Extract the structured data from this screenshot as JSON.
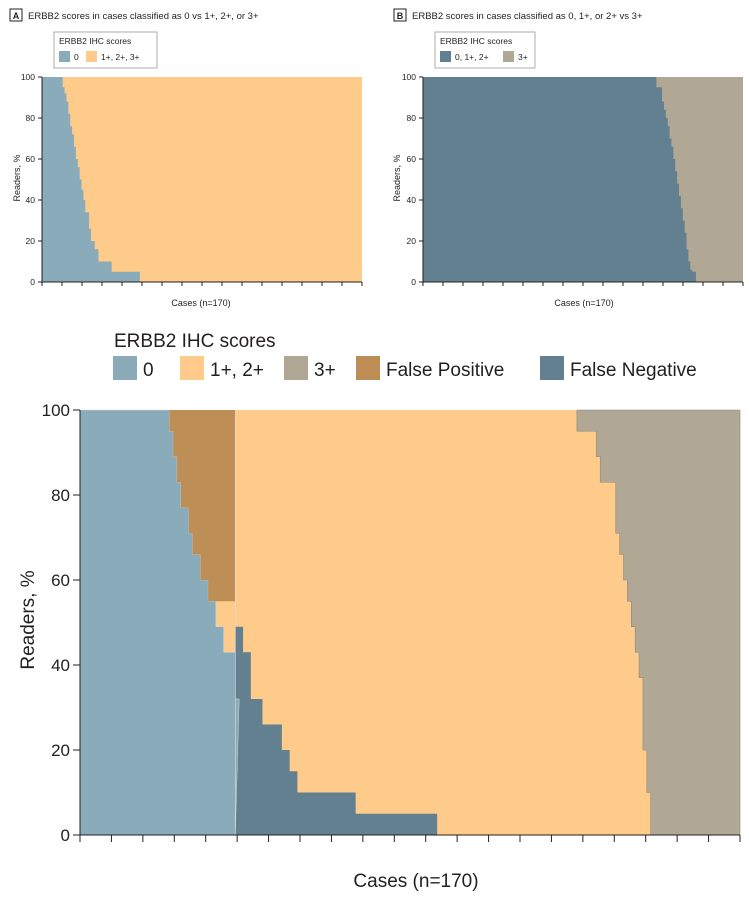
{
  "colors": {
    "zero": "#8aabb9",
    "low": "#fecb8b",
    "three": "#b0a895",
    "fp": "#bd8f57",
    "fn": "#628090",
    "axis": "#231f20"
  },
  "panel_a": {
    "letter": "A",
    "title": "ERBB2 scores in cases classified as 0 vs 1+, 2+, or 3+",
    "legend_title": "ERBB2 IHC scores",
    "legend_items": [
      "0",
      "1+, 2+, 3+"
    ],
    "ylabel": "Readers, %",
    "xlabel": "Cases (n=170)"
  },
  "panel_b": {
    "letter": "B",
    "title": "ERBB2 scores in cases classified as 0, 1+, or 2+ vs 3+",
    "legend_title": "ERBB2 IHC scores",
    "legend_items": [
      "0, 1+, 2+",
      "3+"
    ],
    "ylabel": "Readers, %",
    "xlabel": "Cases (n=170)"
  },
  "main": {
    "legend_title": "ERBB2 IHC scores",
    "legend_items": [
      "0",
      "1+, 2+",
      "3+",
      "False Positive",
      "False Negative"
    ],
    "ylabel": "Readers, %",
    "xlabel": "Cases (n=170)"
  },
  "chart_data": [
    {
      "type": "area",
      "panel": "A",
      "x_range": [
        0,
        170
      ],
      "ylim": [
        0,
        100
      ],
      "yticks": [
        0,
        20,
        40,
        60,
        80,
        100
      ],
      "grid": false,
      "series": [
        {
          "name": "0",
          "x": [
            0,
            11,
            12,
            13,
            14,
            15,
            16,
            17,
            18,
            19,
            20,
            21,
            22,
            23,
            25,
            26,
            28,
            30,
            33,
            37,
            45,
            52
          ],
          "y": [
            100,
            95,
            92,
            88,
            82,
            76,
            72,
            66,
            60,
            56,
            50,
            45,
            40,
            34,
            26,
            20,
            16,
            10,
            10,
            5,
            5,
            0
          ]
        },
        {
          "name": "1+, 2+, 3+",
          "x": [
            0,
            11,
            12,
            13,
            14,
            15,
            16,
            17,
            18,
            19,
            20,
            21,
            22,
            23,
            25,
            26,
            28,
            30,
            33,
            37,
            45,
            52,
            170
          ],
          "y": [
            0,
            5,
            8,
            12,
            18,
            24,
            28,
            34,
            40,
            44,
            50,
            55,
            60,
            66,
            74,
            80,
            84,
            90,
            90,
            95,
            95,
            100,
            100
          ]
        }
      ]
    },
    {
      "type": "area",
      "panel": "B",
      "x_range": [
        0,
        170
      ],
      "ylim": [
        0,
        100
      ],
      "yticks": [
        0,
        20,
        40,
        60,
        80,
        100
      ],
      "grid": false,
      "series": [
        {
          "name": "0, 1+, 2+",
          "x": [
            0,
            124,
            127,
            128,
            129,
            130,
            131,
            132,
            133,
            134,
            135,
            136,
            137,
            138,
            139,
            140,
            141,
            142,
            143,
            145
          ],
          "y": [
            100,
            95,
            88,
            84,
            80,
            76,
            70,
            66,
            60,
            54,
            48,
            42,
            36,
            30,
            24,
            16,
            10,
            6,
            5,
            0
          ]
        },
        {
          "name": "3+",
          "x": [
            0,
            124,
            127,
            128,
            129,
            130,
            131,
            132,
            133,
            134,
            135,
            136,
            137,
            138,
            139,
            140,
            141,
            142,
            143,
            145,
            170
          ],
          "y": [
            0,
            5,
            12,
            16,
            20,
            24,
            30,
            34,
            40,
            46,
            52,
            58,
            64,
            70,
            76,
            84,
            90,
            94,
            95,
            100,
            100
          ]
        }
      ]
    },
    {
      "type": "area",
      "panel": "main",
      "x_range": [
        0,
        170
      ],
      "ylim": [
        0,
        100
      ],
      "yticks": [
        0,
        20,
        40,
        60,
        80,
        100
      ],
      "grid": false,
      "series": [
        {
          "name": "0",
          "note_boundary": "upper edge of 0 region",
          "x": [
            0,
            23,
            24,
            25,
            26,
            28,
            29,
            31,
            33,
            35,
            37,
            40,
            41
          ],
          "y": [
            100,
            95,
            89,
            83,
            77,
            71,
            66,
            60,
            55,
            49,
            43,
            32,
            0
          ]
        },
        {
          "name": "False Positive",
          "x_start": 23,
          "x_end": 40,
          "ylim_span": [
            55,
            100
          ]
        },
        {
          "name": "False Negative",
          "x": [
            40,
            42,
            44,
            47,
            52,
            54,
            56,
            62,
            71,
            78,
            92
          ],
          "y": [
            49,
            43,
            32,
            26,
            20,
            15,
            10,
            10,
            5,
            5,
            0
          ]
        },
        {
          "name": "3+",
          "note_boundary": "left edge of 3+ region",
          "x": [
            128,
            133,
            134,
            138,
            139,
            140,
            141,
            142,
            143,
            144,
            145,
            146,
            147,
            152
          ],
          "y": [
            100,
            95,
            89,
            83,
            71,
            66,
            60,
            55,
            49,
            43,
            37,
            20,
            10,
            0
          ]
        },
        {
          "name": "1+, 2+",
          "region": "between 0/False Negative and 3+"
        }
      ]
    }
  ]
}
